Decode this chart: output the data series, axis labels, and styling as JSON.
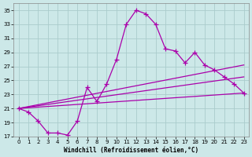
{
  "xlabel": "Windchill (Refroidissement éolien,°C)",
  "bg_color": "#cce8e8",
  "grid_color": "#aacccc",
  "line_color": "#aa00aa",
  "xlim": [
    -0.5,
    23.5
  ],
  "ylim": [
    17,
    36
  ],
  "xticks": [
    0,
    1,
    2,
    3,
    4,
    5,
    6,
    7,
    8,
    9,
    10,
    11,
    12,
    13,
    14,
    15,
    16,
    17,
    18,
    19,
    20,
    21,
    22,
    23
  ],
  "yticks": [
    17,
    19,
    21,
    23,
    25,
    27,
    29,
    31,
    33,
    35
  ],
  "series1_x": [
    0,
    1,
    2,
    3,
    4,
    5,
    6,
    7,
    8,
    9,
    10,
    11,
    12,
    13,
    14,
    15,
    16,
    17,
    18,
    19,
    20,
    21,
    22,
    23
  ],
  "series1_y": [
    21,
    20.5,
    19.2,
    17.5,
    17.5,
    17.2,
    19.2,
    24.0,
    22.0,
    24.5,
    28.0,
    33.0,
    35.0,
    34.5,
    33.0,
    29.5,
    29.2,
    27.5,
    29.0,
    27.2,
    26.5,
    25.5,
    24.5,
    23.2
  ],
  "line2_x": [
    0,
    23
  ],
  "line2_y": [
    21.0,
    23.2
  ],
  "line3_x": [
    0,
    23
  ],
  "line3_y": [
    21.0,
    25.5
  ],
  "line4_x": [
    0,
    23
  ],
  "line4_y": [
    21.0,
    27.2
  ]
}
